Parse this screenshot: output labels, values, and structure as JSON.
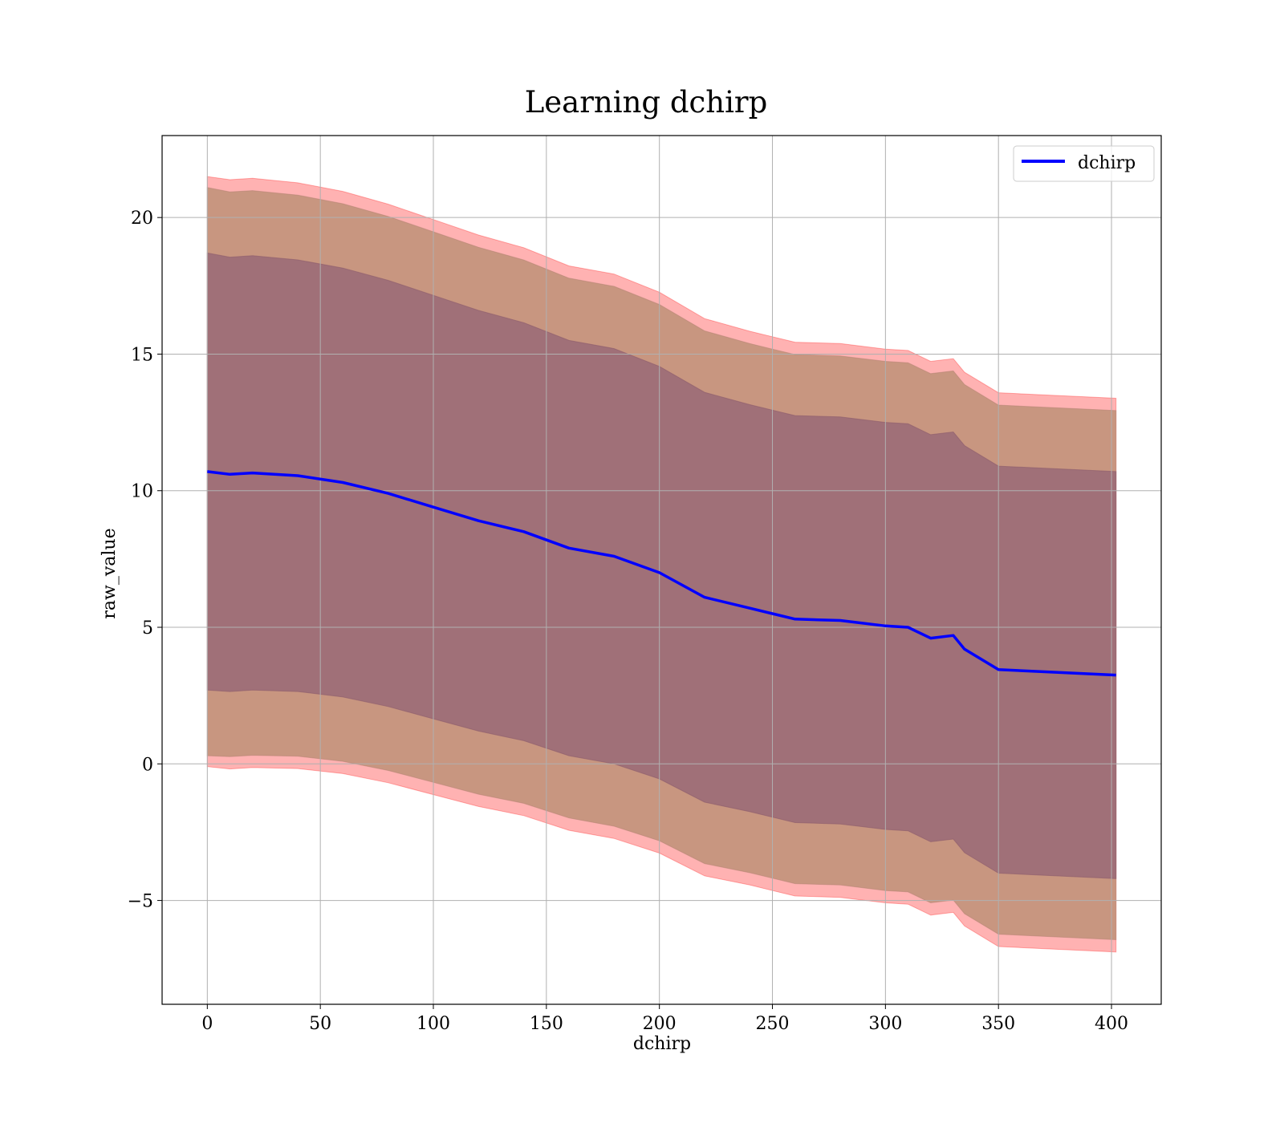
{
  "chart_data": {
    "type": "area",
    "title": "Learning dchirp",
    "xlabel": "dchirp",
    "ylabel": "raw_value",
    "xlim": [
      -20,
      422
    ],
    "ylim": [
      -8.8,
      23.0
    ],
    "x_ticks": [
      0,
      50,
      100,
      150,
      200,
      250,
      300,
      350,
      400
    ],
    "y_ticks": [
      -5,
      0,
      5,
      10,
      15,
      20
    ],
    "y_tick_labels": [
      "−5",
      "0",
      "5",
      "10",
      "15",
      "20"
    ],
    "grid": true,
    "legend": {
      "position": "top-right",
      "entries": [
        "dchirp"
      ]
    },
    "colors": {
      "line": "#0000ff",
      "band": "#ff0000",
      "band_mid": "#c89680",
      "band_inner": "#a07078",
      "grid": "#b0b0b0"
    },
    "series": [
      {
        "name": "dchirp",
        "x": [
          0,
          10,
          20,
          40,
          60,
          80,
          100,
          120,
          140,
          160,
          180,
          200,
          220,
          240,
          250,
          260,
          280,
          300,
          310,
          320,
          330,
          335,
          350,
          402
        ],
        "values": [
          10.7,
          10.6,
          10.65,
          10.55,
          10.3,
          9.9,
          9.4,
          8.9,
          8.5,
          7.9,
          7.6,
          7.0,
          6.1,
          5.7,
          5.5,
          5.3,
          5.25,
          5.05,
          5.0,
          4.6,
          4.7,
          4.2,
          3.45,
          3.25
        ],
        "std": [
          8.0,
          7.95,
          7.95,
          7.9,
          7.85,
          7.8,
          7.75,
          7.7,
          7.65,
          7.6,
          7.6,
          7.55,
          7.5,
          7.45,
          7.45,
          7.45,
          7.45,
          7.45,
          7.45,
          7.45,
          7.45,
          7.45,
          7.45,
          7.45
        ],
        "bands": [
          {
            "std_multiplier": 1.3
          },
          {
            "std_multiplier": 1.3
          },
          {
            "std_multiplier": 1.0
          }
        ],
        "outer_band_extra": [
          0.4,
          0.45,
          0.45,
          0.45,
          0.45,
          0.45,
          0.45,
          0.45,
          0.45,
          0.45,
          0.45,
          0.45,
          0.45,
          0.45,
          0.45,
          0.45,
          0.45,
          0.45,
          0.45,
          0.45,
          0.45,
          0.45,
          0.45,
          0.45
        ]
      }
    ]
  }
}
